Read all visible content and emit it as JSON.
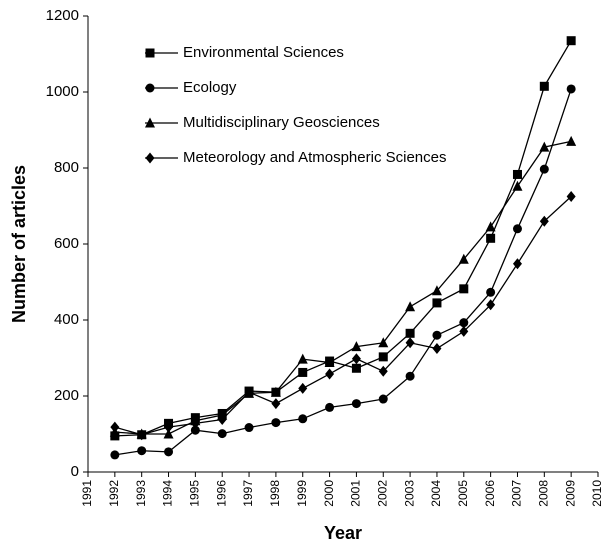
{
  "chart_data": {
    "type": "line",
    "x_label": "Year",
    "y_label": "Number of articles",
    "x": [
      1992,
      1993,
      1994,
      1995,
      1996,
      1997,
      1998,
      1999,
      2000,
      2001,
      2002,
      2003,
      2004,
      2005,
      2006,
      2007,
      2008,
      2009
    ],
    "series": [
      {
        "name": "Environmental Sciences",
        "color": "#000000",
        "marker": "square",
        "values": [
          95,
          98,
          128,
          143,
          154,
          213,
          210,
          262,
          292,
          273,
          303,
          365,
          445,
          482,
          615,
          783,
          1015,
          1135
        ]
      },
      {
        "name": "Ecology",
        "color": "#000000",
        "marker": "circle",
        "values": [
          45,
          56,
          53,
          110,
          101,
          117,
          130,
          140,
          170,
          180,
          192,
          252,
          360,
          393,
          473,
          640,
          797,
          1008
        ]
      },
      {
        "name": "Multidisciplinary Geosciences",
        "color": "#000000",
        "marker": "triangle",
        "values": [
          105,
          100,
          100,
          135,
          150,
          207,
          210,
          297,
          288,
          330,
          340,
          435,
          477,
          560,
          645,
          752,
          855,
          870
        ]
      },
      {
        "name": "Meteorology and Atmospheric Sciences",
        "color": "#000000",
        "marker": "diamond",
        "values": [
          118,
          98,
          118,
          128,
          138,
          210,
          180,
          220,
          258,
          298,
          265,
          340,
          325,
          370,
          440,
          548,
          660,
          725
        ]
      }
    ],
    "xlim": [
      1991,
      2010
    ],
    "xticks": [
      1991,
      1992,
      1993,
      1994,
      1995,
      1996,
      1997,
      1998,
      1999,
      2000,
      2001,
      2002,
      2003,
      2004,
      2005,
      2006,
      2007,
      2008,
      2009,
      2010
    ],
    "ylim": [
      0,
      1200
    ],
    "yticks": [
      0,
      200,
      400,
      600,
      800,
      1000,
      1200
    ],
    "grid": false,
    "legend": "upper left"
  }
}
